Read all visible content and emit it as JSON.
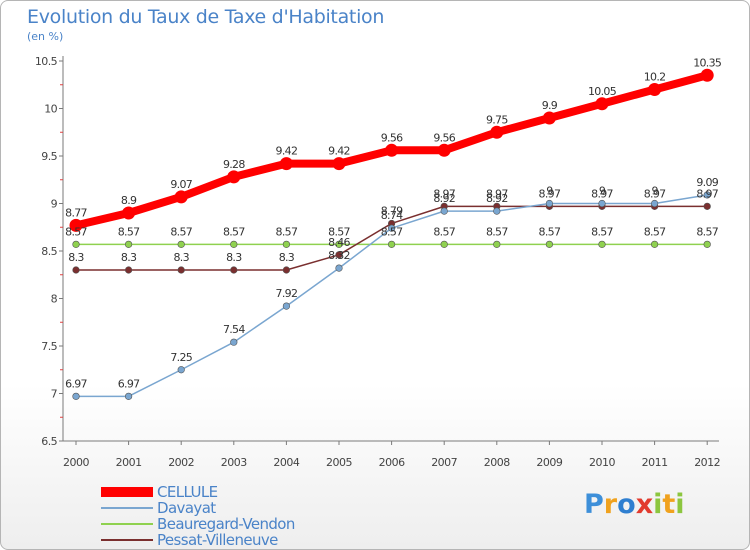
{
  "title": "Evolution du Taux de Taxe d'Habitation",
  "subtitle": "(en %)",
  "brand": {
    "letters": [
      {
        "ch": "P",
        "color": "#3d8fd9"
      },
      {
        "ch": "r",
        "color": "#f0a21e"
      },
      {
        "ch": "o",
        "color": "#2f7fd0"
      },
      {
        "ch": "x",
        "color": "#e23b2e"
      },
      {
        "ch": "i",
        "color": "#8cc63f"
      },
      {
        "ch": "t",
        "color": "#f0a21e"
      },
      {
        "ch": "i",
        "color": "#8cc63f"
      }
    ]
  },
  "chart_data": {
    "type": "line",
    "title": "Evolution du Taux de Taxe d'Habitation",
    "subtitle": "(en %)",
    "xlabel": "",
    "ylabel": "",
    "ylim": [
      6.5,
      10.5
    ],
    "yticks": [
      6.5,
      7,
      7.5,
      8,
      8.5,
      9,
      9.5,
      10,
      10.5
    ],
    "grid": false,
    "legend_position": "bottom-left",
    "categories": [
      "2000",
      "2001",
      "2002",
      "2003",
      "2004",
      "2005",
      "2006",
      "2007",
      "2008",
      "2009",
      "2010",
      "2011",
      "2012"
    ],
    "series": [
      {
        "name": "CELLULE",
        "color": "#ff0000",
        "values": [
          8.77,
          8.9,
          9.07,
          9.28,
          9.42,
          9.42,
          9.56,
          9.56,
          9.75,
          9.9,
          10.05,
          10.2,
          10.35
        ],
        "labels": [
          "8.77",
          "8.9",
          "9.07",
          "9.28",
          "9.42",
          "9.42",
          "9.56",
          "9.56",
          "9.75",
          "9.9",
          "10.05",
          "10.2",
          "10.35"
        ]
      },
      {
        "name": "Davayat",
        "color": "#7aa6d0",
        "values": [
          6.97,
          6.97,
          7.25,
          7.54,
          7.92,
          8.32,
          8.74,
          8.92,
          8.92,
          9,
          9,
          9,
          9.09
        ],
        "labels": [
          "6.97",
          "6.97",
          "7.25",
          "7.54",
          "7.92",
          "8.32",
          "8.74",
          "8.92",
          "8.92",
          "9",
          "9",
          "9",
          "9.09"
        ]
      },
      {
        "name": "Beauregard-Vendon",
        "color": "#8fd14f",
        "values": [
          8.57,
          8.57,
          8.57,
          8.57,
          8.57,
          8.57,
          8.57,
          8.57,
          8.57,
          8.57,
          8.57,
          8.57,
          8.57
        ],
        "labels": [
          "8.57",
          "8.57",
          "8.57",
          "8.57",
          "8.57",
          "8.57",
          "8.57",
          "8.57",
          "8.57",
          "8.57",
          "8.57",
          "8.57",
          "8.57"
        ]
      },
      {
        "name": "Pessat-Villeneuve",
        "color": "#7a2f2f",
        "values": [
          8.3,
          8.3,
          8.3,
          8.3,
          8.3,
          8.46,
          8.79,
          8.97,
          8.97,
          8.97,
          8.97,
          8.97,
          8.97
        ],
        "labels": [
          "8.3",
          "8.3",
          "8.3",
          "8.3",
          "8.3",
          "8.46",
          "8.79",
          "8.97",
          "8.97",
          "8.97",
          "8.97",
          "8.97",
          "8.97"
        ]
      }
    ]
  }
}
